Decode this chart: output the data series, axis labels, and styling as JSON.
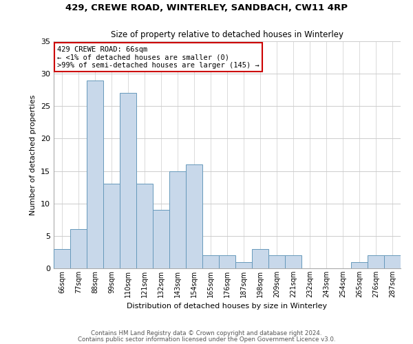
{
  "title1": "429, CREWE ROAD, WINTERLEY, SANDBACH, CW11 4RP",
  "title2": "Size of property relative to detached houses in Winterley",
  "xlabel": "Distribution of detached houses by size in Winterley",
  "ylabel": "Number of detached properties",
  "bin_labels": [
    "66sqm",
    "77sqm",
    "88sqm",
    "99sqm",
    "110sqm",
    "121sqm",
    "132sqm",
    "143sqm",
    "154sqm",
    "165sqm",
    "176sqm",
    "187sqm",
    "198sqm",
    "209sqm",
    "221sqm",
    "232sqm",
    "243sqm",
    "254sqm",
    "265sqm",
    "276sqm",
    "287sqm"
  ],
  "bar_values": [
    3,
    6,
    29,
    13,
    27,
    13,
    9,
    15,
    16,
    2,
    2,
    1,
    3,
    2,
    2,
    0,
    0,
    0,
    1,
    2,
    2
  ],
  "bar_color": "#c8d8ea",
  "bar_edge_color": "#6699bb",
  "ylim": [
    0,
    35
  ],
  "yticks": [
    0,
    5,
    10,
    15,
    20,
    25,
    30,
    35
  ],
  "annotation_title": "429 CREWE ROAD: 66sqm",
  "annotation_line1": "← <1% of detached houses are smaller (0)",
  "annotation_line2": ">99% of semi-detached houses are larger (145) →",
  "annotation_box_color": "#ffffff",
  "annotation_box_edge": "#cc0000",
  "footer1": "Contains HM Land Registry data © Crown copyright and database right 2024.",
  "footer2": "Contains public sector information licensed under the Open Government Licence v3.0.",
  "background_color": "#ffffff",
  "grid_color": "#cccccc"
}
